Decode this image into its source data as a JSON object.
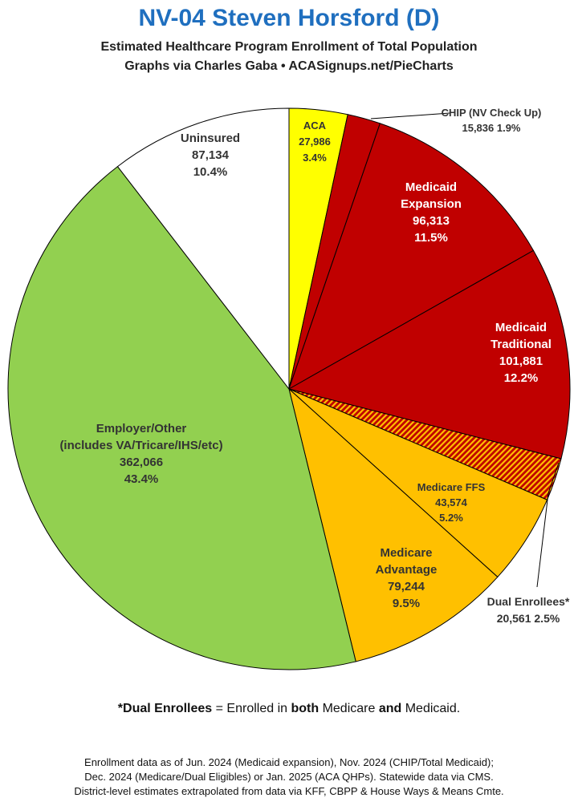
{
  "header": {
    "title": "NV-04 Steven Horsford (D)",
    "subtitle1": "Estimated Healthcare Program Enrollment of Total Population",
    "subtitle2": "Graphs via Charles Gaba   •   ACASignups.net/PieCharts"
  },
  "chart_data": {
    "type": "pie",
    "start_angle_deg": 0,
    "direction": "clockwise",
    "slices": [
      {
        "name": "ACA",
        "lines": [
          "ACA",
          "27,986",
          "3.4%"
        ],
        "value": 27986,
        "percent": 3.4,
        "color": "#ffff00",
        "pattern": "solid"
      },
      {
        "name": "CHIP (NV Check Up)",
        "lines": [
          "CHIP (NV Check Up)",
          "15,836 1.9%"
        ],
        "value": 15836,
        "percent": 1.9,
        "color": "#c00000",
        "pattern": "solid"
      },
      {
        "name": "Medicaid Expansion",
        "lines": [
          "Medicaid",
          "Expansion",
          "96,313",
          "11.5%"
        ],
        "value": 96313,
        "percent": 11.5,
        "color": "#c00000",
        "pattern": "solid"
      },
      {
        "name": "Medicaid Traditional",
        "lines": [
          "Medicaid",
          "Traditional",
          "101,881",
          "12.2%"
        ],
        "value": 101881,
        "percent": 12.2,
        "color": "#c00000",
        "pattern": "solid"
      },
      {
        "name": "Dual Enrollees*",
        "lines": [
          "Dual Enrollees*",
          "20,561 2.5%"
        ],
        "value": 20561,
        "percent": 2.5,
        "color": "#c00000",
        "pattern": "hatched",
        "pattern_color": "#ffc000"
      },
      {
        "name": "Medicare FFS",
        "lines": [
          "Medicare FFS",
          "43,574",
          "5.2%"
        ],
        "value": 43574,
        "percent": 5.2,
        "color": "#ffc000",
        "pattern": "solid"
      },
      {
        "name": "Medicare Advantage",
        "lines": [
          "Medicare",
          "Advantage",
          "79,244",
          "9.5%"
        ],
        "value": 79244,
        "percent": 9.5,
        "color": "#ffc000",
        "pattern": "solid"
      },
      {
        "name": "Employer/Other",
        "lines": [
          "Employer/Other",
          "(includes VA/Tricare/IHS/etc)",
          "362,066",
          "43.4%"
        ],
        "value": 362066,
        "percent": 43.4,
        "color": "#92d050",
        "pattern": "solid"
      },
      {
        "name": "Uninsured",
        "lines": [
          "Uninsured",
          "87,134",
          "10.4%"
        ],
        "value": 87134,
        "percent": 10.4,
        "color": "#ffffff",
        "pattern": "solid"
      }
    ]
  },
  "note": {
    "prefix": "*",
    "term": "Dual Enrollees",
    "mid": " = Enrolled in ",
    "both": "both",
    "medicare": " Medicare ",
    "and": "and",
    "medicaid": " Medicaid."
  },
  "footer": {
    "line1": "Enrollment data as of Jun. 2024 (Medicaid expansion), Nov. 2024 (CHIP/Total Medicaid);",
    "line2": "Dec. 2024 (Medicare/Dual Eligibles) or Jan. 2025 (ACA QHPs). Statewide data via CMS.",
    "line3": "District-level estimates extrapolated from data via KFF, CBPP & House Ways & Means Cmte."
  }
}
